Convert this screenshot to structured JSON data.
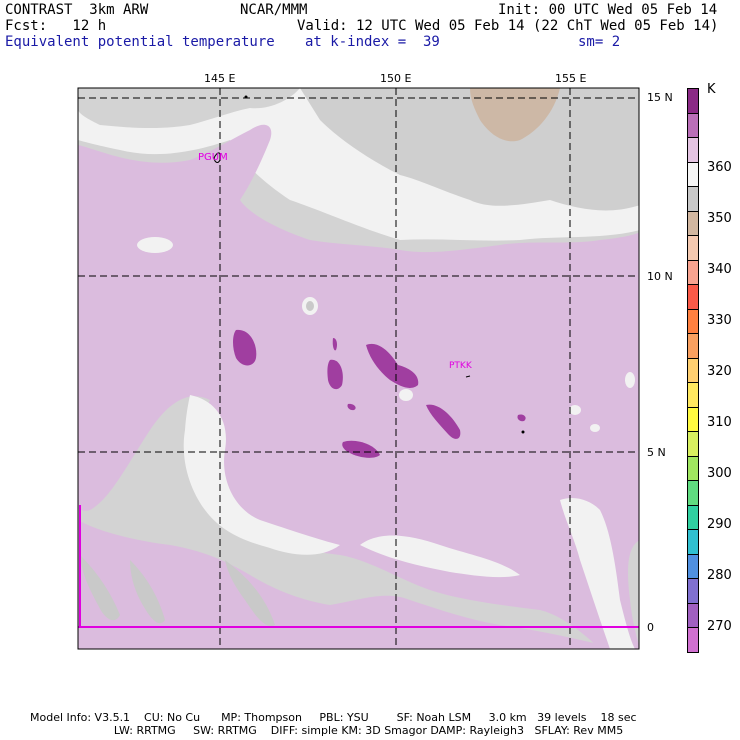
{
  "header": {
    "line1_left": "CONTRAST  3km ARW",
    "line1_mid": "NCAR/MMM",
    "line1_right": "Init: 00 UTC Wed 05 Feb 14",
    "line2_left": "Fcst:   12 h",
    "line2_right": "Valid: 12 UTC Wed 05 Feb 14 (22 ChT Wed 05 Feb 14)",
    "line3_left": "Equivalent potential temperature",
    "line3_mid": "at k-index =  39",
    "line3_right": "sm= 2"
  },
  "map": {
    "lon_labels": [
      "145 E",
      "150 E",
      "155 E"
    ],
    "lat_labels": [
      "15 N",
      "10 N",
      "5 N",
      "0"
    ],
    "stations": [
      "PGUM",
      "PTKK"
    ],
    "colors": {
      "background_gray": "#d3d3d3",
      "light": "#f0f0f0",
      "lavender": "#dbbbde",
      "purple": "#a03ea0",
      "tan": "#cdb5a0",
      "station": "#e000e0"
    }
  },
  "colorbar": {
    "unit": "K",
    "labels": [
      "360",
      "350",
      "340",
      "330",
      "320",
      "310",
      "300",
      "290",
      "280",
      "270"
    ],
    "colors": [
      "#8b2a86",
      "#ba6fb8",
      "#e4c4e2",
      "#f5f5f5",
      "#c8c8c8",
      "#d2b7a0",
      "#f4c9b0",
      "#f8a390",
      "#fa5a48",
      "#ff8040",
      "#f9a060",
      "#ffcf70",
      "#ffe860",
      "#fffa40",
      "#d8f060",
      "#a0e660",
      "#60dc80",
      "#30d0a0",
      "#30c0d0",
      "#5090e0",
      "#8070d0",
      "#a060c0",
      "#d070d0"
    ]
  },
  "footer": {
    "line1": "Model Info: V3.5.1    CU: No Cu      MP: Thompson     PBL: YSU        SF: Noah LSM     3.0 km   39 levels    18 sec",
    "line2": "                        LW: RRTMG     SW: RRTMG    DIFF: simple KM: 3D Smagor DAMP: Rayleigh3   SFLAY: Rev MM5"
  }
}
